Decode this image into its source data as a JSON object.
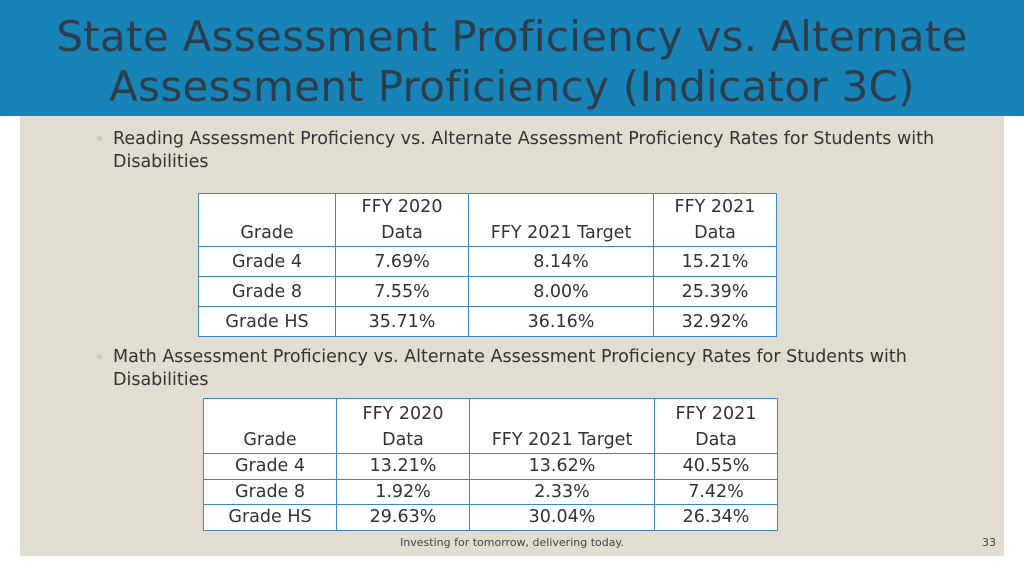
{
  "slide": {
    "title_line1": "State Assessment Proficiency vs. Alternate",
    "title_line2": "Assessment Proficiency (Indicator 3C)",
    "footer": "Investing for tomorrow, delivering today.",
    "page_number": "33"
  },
  "reading": {
    "bullet": "Reading Assessment Proficiency vs. Alternate Assessment Proficiency Rates for Students with Disabilities",
    "headers": [
      {
        "line1": "",
        "line2": "Grade"
      },
      {
        "line1": "FFY 2020",
        "line2": "Data"
      },
      {
        "line1": "",
        "line2": "FFY 2021 Target"
      },
      {
        "line1": "FFY 2021",
        "line2": "Data"
      }
    ],
    "rows": [
      [
        "Grade 4",
        "7.69%",
        "8.14%",
        "15.21%"
      ],
      [
        "Grade 8",
        "7.55%",
        "8.00%",
        "25.39%"
      ],
      [
        "Grade HS",
        "35.71%",
        "36.16%",
        "32.92%"
      ]
    ]
  },
  "math": {
    "bullet": "Math Assessment Proficiency vs. Alternate Assessment Proficiency Rates for Students with Disabilities",
    "headers": [
      {
        "line1": "",
        "line2": "Grade"
      },
      {
        "line1": "FFY 2020",
        "line2": "Data"
      },
      {
        "line1": "",
        "line2": "FFY 2021 Target"
      },
      {
        "line1": "FFY 2021",
        "line2": "Data"
      }
    ],
    "rows": [
      [
        "Grade 4",
        "13.21%",
        "13.62%",
        "40.55%"
      ],
      [
        "Grade 8",
        "1.92%",
        "2.33%",
        "7.42%"
      ],
      [
        "Grade HS",
        "29.63%",
        "30.04%",
        "26.34%"
      ]
    ]
  }
}
